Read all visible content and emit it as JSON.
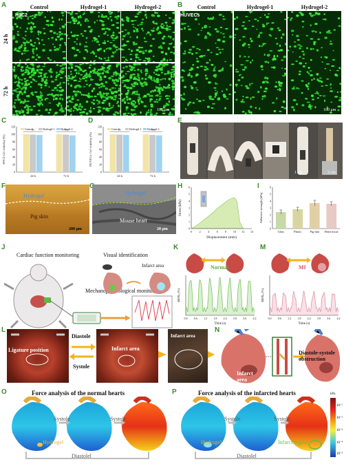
{
  "panels": {
    "A": {
      "letter": "A",
      "tag": "H9C2",
      "cols": [
        "Control",
        "Hydrogel-1",
        "Hydrogel-2"
      ],
      "rows": [
        "24 h",
        "72 h"
      ],
      "scale": "100 μm"
    },
    "B": {
      "letter": "B",
      "tag": "HUVECs",
      "cols": [
        "Control",
        "Hydrogel-1",
        "Hydrogel-2"
      ],
      "scale": "100 μm"
    },
    "C": {
      "letter": "C"
    },
    "D": {
      "letter": "D"
    },
    "E": {
      "letter": "E",
      "scale1": "1 cm",
      "scale2": "2 cm"
    },
    "F": {
      "letter": "F",
      "top": "Hydrogel",
      "bottom": "Pig skin",
      "scale": "200 μm"
    },
    "G": {
      "letter": "G",
      "top": "Hydrogel",
      "bottom": "Mouse heart",
      "scale": "20 μm"
    },
    "H": {
      "letter": "H"
    },
    "I": {
      "letter": "I"
    },
    "J": {
      "letter": "J",
      "cardiac": "Cardiac function monitoring",
      "visual": "Visual identification",
      "infarct": "Infarct area",
      "mechano": "Mechanophysiological monitoring"
    },
    "K": {
      "letter": "K",
      "state": "Normal"
    },
    "M": {
      "letter": "M",
      "state": "MI"
    },
    "L": {
      "letter": "L",
      "ligature": "Ligature position",
      "diastole": "Diastole",
      "systole": "Systole",
      "infarct1": "Infarct area",
      "infarct2": "Infarct area"
    },
    "N": {
      "letter": "N",
      "infarct": "Infarct area",
      "obstruction": "Diastole-systole obstruction"
    },
    "O": {
      "letter": "O",
      "title": "Force analysis of the normal hearts",
      "systole1": "Systole",
      "systole2": "Systole",
      "hydrogel": "Hydrogel",
      "diastole": "Diastolel"
    },
    "P": {
      "letter": "P",
      "title": "Force analysis of the infarcted hearts",
      "systole1": "Systole",
      "systole2": "Systole",
      "hydrogel": "Hydrogel",
      "infarct": "Infarct region",
      "diastole": "Diastolel",
      "cbar_unit": "kPa",
      "cbar_ticks": [
        "10⁻¹",
        "10⁻²",
        "10⁻³",
        "10⁻⁴",
        "10⁻⁵"
      ]
    }
  },
  "chart_data": [
    {
      "id": "C",
      "type": "bar",
      "ylabel": "H9C2 Cell viability (%)",
      "categories": [
        "24 h",
        "72 h"
      ],
      "ylim": [
        0,
        120
      ],
      "yticks": [
        "0",
        "20",
        "40",
        "60",
        "80",
        "100",
        "120"
      ],
      "legend": [
        "Control",
        "Hydrogel-1",
        "Hydrogel-2"
      ],
      "colors": [
        "#f2e3a6",
        "#c9c9c9",
        "#9fd3ef"
      ],
      "series": [
        {
          "name": "Control",
          "values": [
            100,
            100
          ]
        },
        {
          "name": "Hydrogel-1",
          "values": [
            99,
            99
          ]
        },
        {
          "name": "Hydrogel-2",
          "values": [
            98,
            97
          ]
        }
      ],
      "annotations": [
        "ns",
        "ns"
      ]
    },
    {
      "id": "D",
      "type": "bar",
      "ylabel": "HUVECs Cell viability (%)",
      "categories": [
        "24 h",
        "72 h"
      ],
      "ylim": [
        0,
        120
      ],
      "yticks": [
        "0",
        "20",
        "40",
        "60",
        "80",
        "100",
        "120"
      ],
      "legend": [
        "Control",
        "Hydrogel-1",
        "Hydrogel-2"
      ],
      "colors": [
        "#f2e3a6",
        "#c9c9c9",
        "#9fd3ef"
      ],
      "series": [
        {
          "name": "Control",
          "values": [
            100,
            100
          ]
        },
        {
          "name": "Hydrogel-1",
          "values": [
            99,
            98
          ]
        },
        {
          "name": "Hydrogel-2",
          "values": [
            98,
            97
          ]
        }
      ],
      "annotations": [
        "ns",
        "ns"
      ]
    },
    {
      "id": "H",
      "type": "area",
      "xlabel": "Displacement (mm)",
      "ylabel": "Stress (kPa)",
      "xlim": [
        0,
        14
      ],
      "ylim": [
        0,
        6
      ],
      "xticks": [
        "0",
        "2",
        "4",
        "6",
        "8",
        "10",
        "12",
        "14"
      ],
      "yticks": [
        "0",
        "1",
        "2",
        "3",
        "4",
        "5",
        "6"
      ],
      "x": [
        0,
        1,
        2,
        3,
        4,
        5,
        6,
        7,
        8,
        9,
        10,
        10.6,
        11.2,
        12
      ],
      "y": [
        0,
        0.35,
        0.8,
        1.3,
        1.8,
        2.3,
        2.9,
        3.4,
        3.9,
        4.3,
        4.5,
        3.9,
        1.0,
        0
      ]
    },
    {
      "id": "I",
      "type": "bar",
      "ylabel": "Adhesive strength (kPa)",
      "categories": [
        "Glass",
        "Plastic",
        "Pig skin",
        "Heart tissue"
      ],
      "ylim": [
        0,
        6
      ],
      "yticks": [
        "0",
        "1",
        "2",
        "3",
        "4",
        "5",
        "6"
      ],
      "values": [
        2.4,
        2.8,
        3.7,
        3.6
      ],
      "errors": [
        0.3,
        0.3,
        0.4,
        0.3
      ],
      "colors": [
        "#c7d9a7",
        "#d8d5a0",
        "#e3cfa6",
        "#e8c9c4"
      ]
    },
    {
      "id": "K",
      "type": "line",
      "ylabel": "ΔR/R₀ (%)",
      "xlabel": "Time (s)",
      "xlim": [
        0,
        4.2
      ],
      "xticks": [
        "0.0",
        "0.6",
        "1.2",
        "1.8",
        "2.4",
        "3.0",
        "3.6",
        "4.2"
      ],
      "ylim": [
        0,
        50
      ],
      "color": "#6cbf4a",
      "peaks": 7
    },
    {
      "id": "M",
      "type": "line",
      "ylabel": "ΔR/R₀ (%)",
      "xlabel": "Time (s)",
      "xlim": [
        0,
        4.2
      ],
      "xticks": [
        "0.0",
        "0.6",
        "1.2",
        "1.8",
        "2.4",
        "3.0",
        "3.6",
        "4.2"
      ],
      "ylim": [
        0,
        50
      ],
      "color": "#e2879a",
      "peaks": 7
    }
  ]
}
